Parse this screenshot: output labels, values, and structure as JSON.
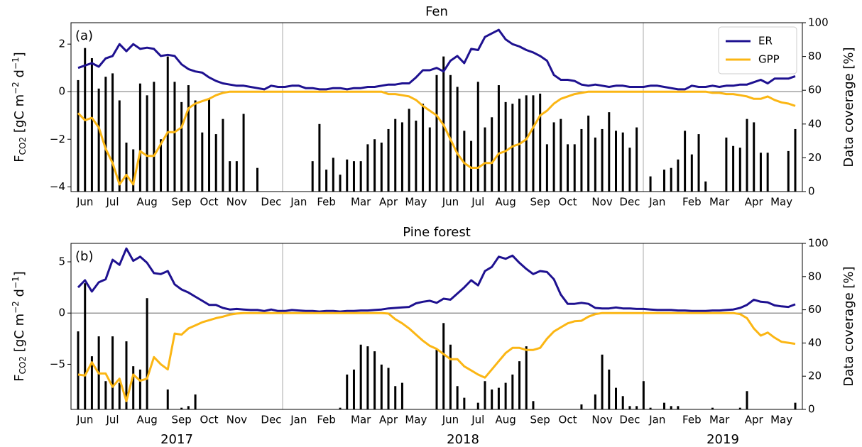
{
  "chart_data": [
    {
      "type": "line",
      "title": "Fen",
      "panel_label": "(a)",
      "ylabel": [
        "F",
        "CO2",
        " [gC m",
        "−2",
        " d",
        "−1",
        "]"
      ],
      "y2label": "Data coverage [%]",
      "legend": "upper right",
      "categories": [
        null,
        "Jun",
        null,
        null,
        null,
        "Jul",
        null,
        null,
        null,
        null,
        "Aug",
        null,
        null,
        null,
        null,
        "Sep",
        null,
        null,
        null,
        "Oct",
        null,
        null,
        null,
        "Nov",
        null,
        null,
        null,
        null,
        "Dec",
        null,
        null,
        null,
        "Jan",
        null,
        null,
        null,
        "Feb",
        null,
        null,
        null,
        null,
        "Mar",
        null,
        null,
        null,
        "Apr",
        null,
        null,
        null,
        "May",
        null,
        null,
        null,
        null,
        "Jun",
        null,
        null,
        null,
        "Jul",
        null,
        null,
        null,
        "Aug",
        null,
        null,
        null,
        null,
        "Sep",
        null,
        null,
        null,
        "Oct",
        null,
        null,
        null,
        null,
        "Nov",
        null,
        null,
        null,
        "Dec",
        null,
        null,
        null,
        "Jan",
        null,
        null,
        null,
        null,
        "Feb",
        null,
        null,
        null,
        "Mar",
        null,
        null,
        null,
        null,
        "Apr",
        null,
        null,
        null,
        "May",
        null,
        null
      ],
      "ylim": [
        -4.2,
        2.9
      ],
      "yticks": [
        {
          "value": -4,
          "label": "−4"
        },
        {
          "value": -2,
          "label": "−2"
        },
        0,
        2
      ],
      "y2lim": [
        0,
        100
      ],
      "y2ticks": [
        0,
        20,
        40,
        60,
        80,
        100
      ],
      "series": [
        {
          "type": "bar",
          "axis": "y2",
          "color": "#000000",
          "values": [
            66,
            85,
            79,
            61,
            68,
            70,
            54,
            29,
            25,
            64,
            57,
            65,
            31,
            80,
            65,
            53,
            63,
            54,
            35,
            55,
            34,
            43,
            18,
            18,
            46,
            0,
            14,
            0,
            0,
            0,
            0,
            0,
            0,
            0,
            18,
            40,
            13,
            20,
            10,
            19,
            18,
            18,
            28,
            31,
            29,
            37,
            43,
            41,
            49,
            42,
            52,
            38,
            69,
            80,
            69,
            62,
            36,
            30,
            65,
            38,
            44,
            63,
            53,
            52,
            55,
            57,
            57,
            58,
            28,
            41,
            43,
            28,
            28,
            37,
            45,
            32,
            37,
            47,
            36,
            35,
            26,
            38,
            0,
            9,
            0,
            13,
            14,
            19,
            36,
            22,
            34,
            6,
            0,
            0,
            32,
            27,
            26,
            43,
            41,
            23,
            23,
            0,
            0,
            24,
            37
          ]
        },
        {
          "name": "ER",
          "color": "#1e1190",
          "values": [
            1.0,
            1.1,
            1.2,
            1.05,
            1.4,
            1.5,
            2.0,
            1.7,
            2.0,
            1.8,
            1.85,
            1.8,
            1.5,
            1.55,
            1.5,
            1.15,
            0.95,
            0.85,
            0.8,
            0.6,
            0.45,
            0.35,
            0.3,
            0.25,
            0.25,
            0.2,
            0.15,
            0.1,
            0.25,
            0.2,
            0.2,
            0.25,
            0.25,
            0.15,
            0.15,
            0.1,
            0.1,
            0.15,
            0.15,
            0.1,
            0.15,
            0.15,
            0.2,
            0.2,
            0.25,
            0.3,
            0.3,
            0.35,
            0.35,
            0.6,
            0.9,
            0.9,
            1.0,
            0.85,
            1.3,
            1.5,
            1.2,
            1.8,
            1.75,
            2.3,
            2.45,
            2.6,
            2.2,
            2.0,
            1.9,
            1.75,
            1.65,
            1.5,
            1.3,
            0.7,
            0.5,
            0.5,
            0.45,
            0.3,
            0.25,
            0.3,
            0.25,
            0.2,
            0.25,
            0.25,
            0.2,
            0.2,
            0.2,
            0.25,
            0.25,
            0.2,
            0.15,
            0.1,
            0.1,
            0.25,
            0.2,
            0.2,
            0.25,
            0.2,
            0.25,
            0.25,
            0.3,
            0.3,
            0.4,
            0.5,
            0.35,
            0.55,
            0.55,
            0.55,
            0.65
          ]
        },
        {
          "name": "GPP",
          "color": "#fbb614",
          "values": [
            -0.9,
            -1.2,
            -1.1,
            -1.5,
            -2.4,
            -3.0,
            -3.9,
            -3.5,
            -3.9,
            -2.5,
            -2.7,
            -2.7,
            -2.2,
            -1.7,
            -1.7,
            -1.5,
            -0.7,
            -0.5,
            -0.4,
            -0.3,
            -0.15,
            -0.05,
            0,
            0,
            0,
            0,
            0,
            0,
            0,
            0,
            0,
            0,
            0,
            0,
            0,
            0,
            0,
            0,
            0,
            0,
            0,
            0,
            0,
            0,
            0,
            -0.1,
            -0.1,
            -0.15,
            -0.2,
            -0.35,
            -0.6,
            -0.8,
            -1.0,
            -1.4,
            -2.0,
            -2.6,
            -3.0,
            -3.2,
            -3.2,
            -3.0,
            -3.0,
            -2.6,
            -2.5,
            -2.3,
            -2.2,
            -2.0,
            -1.5,
            -1.0,
            -0.8,
            -0.5,
            -0.3,
            -0.2,
            -0.1,
            -0.05,
            0,
            0,
            0,
            0,
            0,
            0,
            0,
            0,
            0,
            0,
            0,
            0,
            0,
            0,
            0,
            0,
            0,
            0,
            -0.05,
            -0.05,
            -0.1,
            -0.1,
            -0.15,
            -0.2,
            -0.3,
            -0.3,
            -0.2,
            -0.35,
            -0.45,
            -0.5,
            -0.6
          ]
        }
      ]
    },
    {
      "type": "line",
      "title": "Pine forest",
      "panel_label": "(b)",
      "ylabel": [
        "F",
        "CO2",
        " [gC m",
        "−2",
        " d",
        "−1",
        "]"
      ],
      "y2label": "Data coverage [%]",
      "year_labels": [
        "2017",
        "2018",
        "2019"
      ],
      "categories": [
        null,
        "Jun",
        null,
        null,
        null,
        "Jul",
        null,
        null,
        null,
        null,
        "Aug",
        null,
        null,
        null,
        null,
        "Sep",
        null,
        null,
        null,
        "Oct",
        null,
        null,
        null,
        "Nov",
        null,
        null,
        null,
        null,
        "Dec",
        null,
        null,
        null,
        "Jan",
        null,
        null,
        null,
        "Feb",
        null,
        null,
        null,
        null,
        "Mar",
        null,
        null,
        null,
        "Apr",
        null,
        null,
        null,
        "May",
        null,
        null,
        null,
        null,
        "Jun",
        null,
        null,
        null,
        "Jul",
        null,
        null,
        null,
        "Aug",
        null,
        null,
        null,
        null,
        "Sep",
        null,
        null,
        null,
        "Oct",
        null,
        null,
        null,
        null,
        "Nov",
        null,
        null,
        null,
        "Dec",
        null,
        null,
        null,
        "Jan",
        null,
        null,
        null,
        null,
        "Feb",
        null,
        null,
        null,
        "Mar",
        null,
        null,
        null,
        null,
        "Apr",
        null,
        null,
        null,
        "May",
        null,
        null
      ],
      "ylim": [
        -9.4,
        6.8
      ],
      "yticks": [
        {
          "value": -5,
          "label": "−5"
        },
        0,
        5
      ],
      "y2lim": [
        0,
        100
      ],
      "y2ticks": [
        0,
        20,
        40,
        60,
        80,
        100
      ],
      "series": [
        {
          "type": "bar",
          "axis": "y2",
          "color": "#000000",
          "values": [
            47,
            76,
            32,
            44,
            17,
            44,
            16,
            41,
            26,
            24,
            67,
            0,
            0,
            12,
            0,
            1,
            2,
            9,
            0,
            0,
            0,
            0,
            0,
            0,
            0,
            0,
            0,
            0,
            0,
            0,
            0,
            0,
            0,
            0,
            0,
            0,
            0,
            0,
            1,
            21,
            24,
            39,
            38,
            35,
            27,
            25,
            14,
            16,
            0,
            0,
            0,
            0,
            36,
            52,
            39,
            14,
            7,
            0,
            4,
            17,
            12,
            13,
            16,
            21,
            29,
            38,
            5,
            0,
            0,
            0,
            0,
            0,
            0,
            3,
            0,
            9,
            33,
            24,
            13,
            8,
            2,
            2,
            17,
            1,
            0,
            4,
            2,
            2,
            0,
            0,
            0,
            0,
            1,
            0,
            0,
            0,
            1,
            11,
            0,
            0,
            0,
            0,
            0,
            0,
            4
          ]
        },
        {
          "color": "#1e1190",
          "values": [
            2.5,
            3.2,
            2.1,
            3.0,
            3.3,
            5.2,
            4.7,
            6.3,
            5.1,
            5.5,
            4.9,
            3.9,
            3.8,
            4.1,
            2.8,
            2.3,
            2.0,
            1.6,
            1.2,
            0.8,
            0.8,
            0.5,
            0.35,
            0.4,
            0.35,
            0.3,
            0.3,
            0.2,
            0.35,
            0.2,
            0.2,
            0.3,
            0.25,
            0.2,
            0.2,
            0.15,
            0.2,
            0.2,
            0.15,
            0.2,
            0.2,
            0.25,
            0.25,
            0.3,
            0.35,
            0.45,
            0.5,
            0.55,
            0.6,
            0.95,
            1.1,
            1.2,
            1.0,
            1.4,
            1.3,
            1.9,
            2.5,
            3.2,
            2.7,
            4.1,
            4.5,
            5.5,
            5.3,
            5.6,
            4.9,
            4.3,
            3.8,
            4.1,
            4.0,
            3.3,
            1.8,
            0.9,
            0.9,
            1.0,
            0.9,
            0.5,
            0.45,
            0.45,
            0.55,
            0.45,
            0.45,
            0.4,
            0.4,
            0.35,
            0.3,
            0.3,
            0.3,
            0.25,
            0.25,
            0.2,
            0.2,
            0.2,
            0.25,
            0.25,
            0.3,
            0.35,
            0.5,
            0.8,
            1.3,
            1.1,
            1.05,
            0.75,
            0.65,
            0.6,
            0.85
          ]
        },
        {
          "color": "#fbb614",
          "values": [
            -6.0,
            -6.1,
            -4.8,
            -5.9,
            -5.9,
            -7.2,
            -6.4,
            -8.6,
            -6.0,
            -6.6,
            -6.4,
            -4.3,
            -5.0,
            -5.5,
            -2.0,
            -2.1,
            -1.5,
            -1.2,
            -0.9,
            -0.7,
            -0.5,
            -0.35,
            -0.15,
            -0.05,
            0,
            0,
            0,
            0,
            0,
            0,
            0,
            0,
            0,
            0,
            0,
            0,
            0,
            0,
            0,
            0,
            0,
            0,
            0,
            0,
            0,
            -0.05,
            -0.6,
            -1.0,
            -1.5,
            -2.1,
            -2.7,
            -3.2,
            -3.5,
            -4.0,
            -4.5,
            -4.5,
            -5.2,
            -5.6,
            -6.0,
            -6.3,
            -5.5,
            -4.7,
            -3.9,
            -3.4,
            -3.4,
            -3.6,
            -3.6,
            -3.4,
            -2.5,
            -1.8,
            -1.4,
            -1.0,
            -0.8,
            -0.75,
            -0.35,
            -0.1,
            0,
            0,
            0,
            0,
            0,
            0,
            0,
            0,
            0,
            0,
            0,
            0,
            0,
            0,
            0,
            0,
            0,
            0,
            0,
            0,
            -0.1,
            -0.5,
            -1.5,
            -2.2,
            -1.9,
            -2.4,
            -2.8,
            -2.9,
            -3.0
          ]
        }
      ]
    }
  ]
}
